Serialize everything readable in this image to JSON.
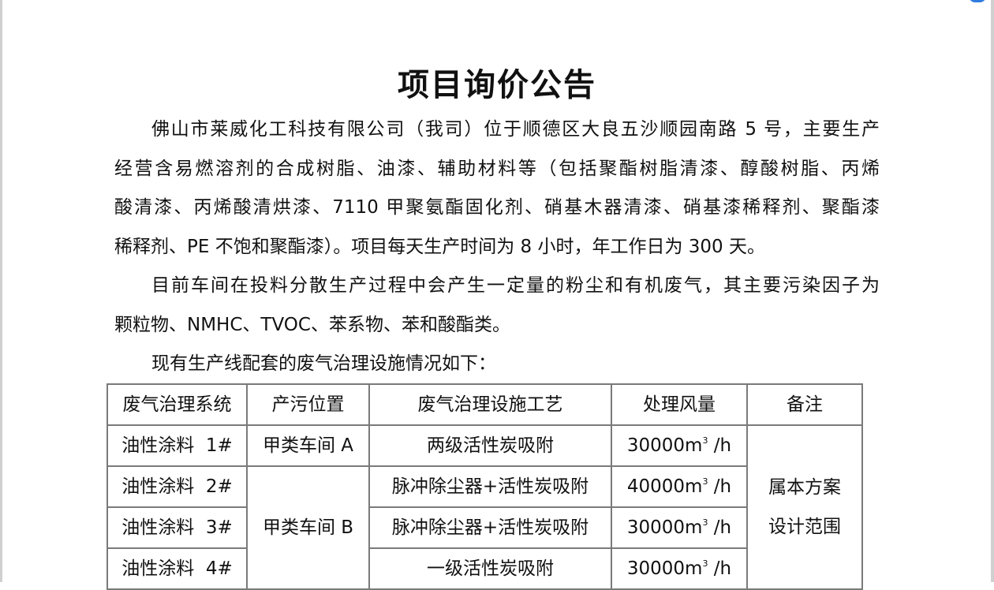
{
  "title": "项目询价公告",
  "paragraphs": [
    {
      "lines": [
        "佛山市莱威化工科技有限公司（我司）位于顺德区大良五沙顺园南路 5 号，主要生产",
        "经营含易燃溶剂的合成树脂、油漆、辅助材料等（包括聚酯树脂清漆、醇酸树脂、丙烯",
        "酸清漆、丙烯酸清烘漆、7110 甲聚氨酯固化剂、硝基木器清漆、硝基漆稀释剂、聚酯漆",
        "稀释剂、PE 不饱和聚酯漆）。项目每天生产时间为 8 小时，年工作日为 300 天。"
      ]
    },
    {
      "lines": [
        "目前车间在投料分散生产过程中会产生一定量的粉尘和有机废气，其主要污染因子为",
        "颗粒物、NMHC、TVOC、苯系物、苯和酸酯类。"
      ]
    },
    {
      "lines": [
        "现有生产线配套的废气治理设施情况如下："
      ]
    }
  ],
  "table": {
    "headers": [
      "废气治理系统",
      "产污位置",
      "废气治理设施工艺",
      "处理风量",
      "备注"
    ],
    "rows": [
      {
        "system": "油性涂料  1#",
        "location": "甲类车间 A",
        "process": "两级活性炭吸附",
        "flow": "30000m",
        "flow_unit": "/h"
      },
      {
        "system": "油性涂料  2#",
        "location": "甲类车间 B",
        "process": "脉冲除尘器+活性炭吸附",
        "flow": "40000m",
        "flow_unit": "/h"
      },
      {
        "system": "油性涂料  3#",
        "process": "脉冲除尘器+活性炭吸附",
        "flow": "30000m",
        "flow_unit": "/h"
      },
      {
        "system": "油性涂料  4#",
        "process": "一级活性炭吸附",
        "flow": "30000m",
        "flow_unit": "/h"
      }
    ],
    "superscript": "3",
    "remark_lines": [
      "属本方案",
      "设计范围"
    ]
  }
}
